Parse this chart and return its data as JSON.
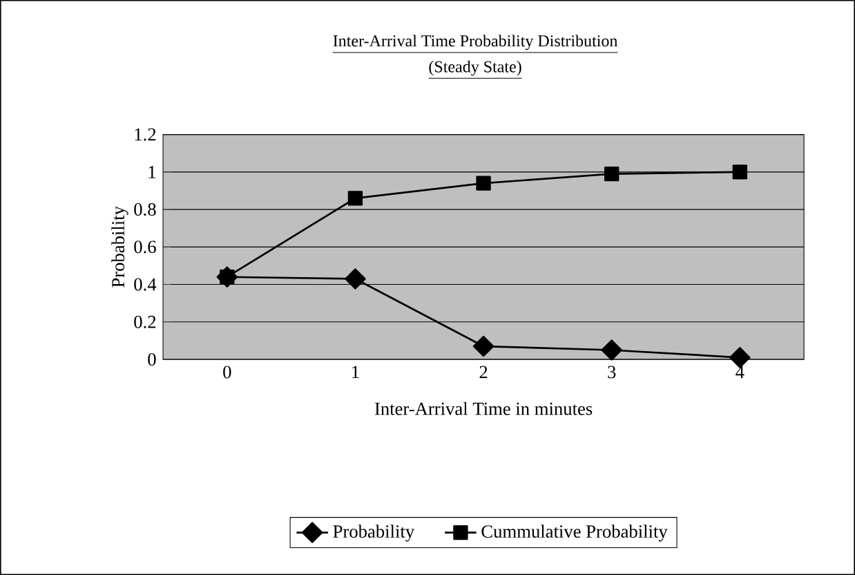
{
  "chart_data": {
    "type": "line",
    "title": "Inter-Arrival Time Probability Distribution",
    "subtitle": "(Steady State)",
    "xlabel": "Inter-Arrival Time in minutes",
    "ylabel": "Probability",
    "categories": [
      "0",
      "1",
      "2",
      "3",
      "4"
    ],
    "series": [
      {
        "name": "Probability",
        "color": "#000000",
        "marker": "diamond",
        "values": [
          0.44,
          0.43,
          0.07,
          0.05,
          0.01
        ]
      },
      {
        "name": "Cummulative Probability",
        "color": "#000000",
        "marker": "square",
        "values": [
          0.44,
          0.86,
          0.94,
          0.99,
          1.0
        ]
      }
    ],
    "ylim": [
      0,
      1.2
    ],
    "yticks": [
      0,
      0.2,
      0.4,
      0.6,
      0.8,
      1,
      1.2
    ],
    "grid": "y",
    "legend": "bottom",
    "line_style": "solid"
  }
}
